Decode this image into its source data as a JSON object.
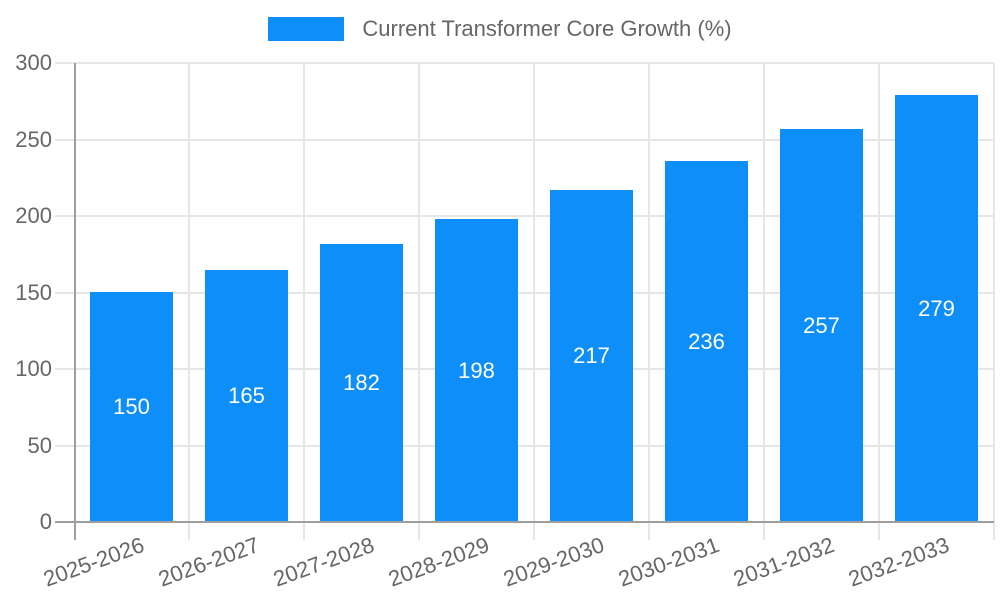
{
  "chart_data": {
    "type": "bar",
    "title": "Current Transformer Core Growth (%)",
    "categories": [
      "2025-2026",
      "2026-2027",
      "2027-2028",
      "2028-2029",
      "2029-2030",
      "2030-2031",
      "2031-2032",
      "2032-2033"
    ],
    "values": [
      150,
      165,
      182,
      198,
      217,
      236,
      257,
      279
    ],
    "value_labels": [
      "150",
      "165",
      "182",
      "198",
      "217",
      "236",
      "257",
      "279"
    ],
    "xlabel": "",
    "ylabel": "",
    "ylim": [
      0,
      300
    ],
    "yticks": [
      0,
      50,
      100,
      150,
      200,
      250,
      300
    ],
    "ytick_labels": [
      "0",
      "50",
      "100",
      "150",
      "200",
      "250",
      "300"
    ],
    "grid": true,
    "legend_position": "top",
    "value_label_position": "center-inside",
    "colors": {
      "bar": "#0d8ef8",
      "value_label": "#ffffff",
      "axis": "#9e9e9e",
      "gridline": "#e6e6e6",
      "tick_text": "#666666",
      "legend_text": "#666666",
      "background": "#ffffff"
    }
  }
}
